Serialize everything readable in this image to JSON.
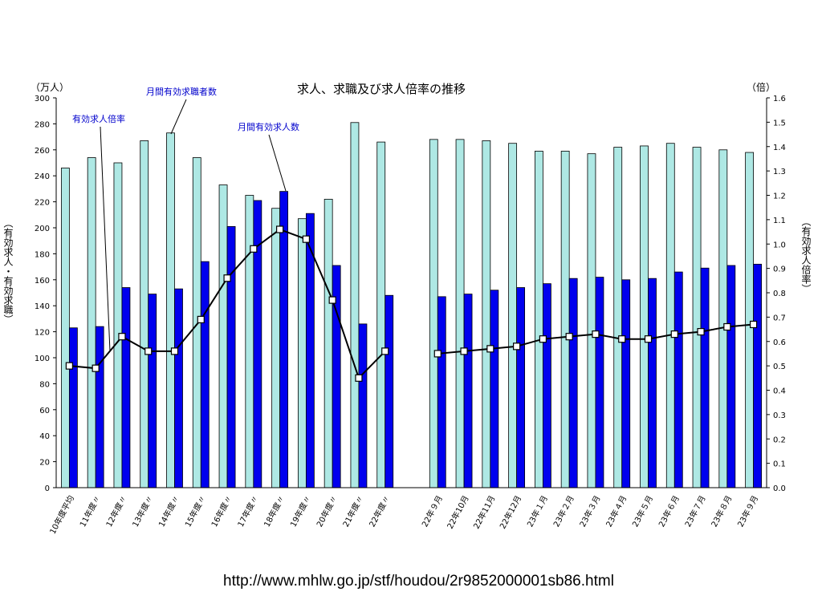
{
  "chart_data": {
    "type": "bar",
    "title": "求人、求職及び求人倍率の推移",
    "left_unit": "（万人）",
    "right_unit": "（倍）",
    "ylabel": "（有効求人・有効求職）",
    "y2label": "（有効求人倍率）",
    "ylim": [
      0,
      300
    ],
    "y2lim": [
      0,
      1.6
    ],
    "yticks": [
      "300",
      "280",
      "260",
      "240",
      "220",
      "200",
      "180",
      "160",
      "140",
      "120",
      "100",
      "80",
      "60",
      "40",
      "20",
      "0"
    ],
    "y2ticks": [
      "1.6",
      "1.5",
      "1.4",
      "1.3",
      "1.2",
      "1.1",
      "1.0",
      "0.9",
      "0.8",
      "0.7",
      "0.6",
      "0.5",
      "0.4",
      "0.3",
      "0.2",
      "0.1",
      "0.0"
    ],
    "categories": [
      "10年度平均",
      "11年度〃",
      "12年度〃",
      "13年度〃",
      "14年度〃",
      "15年度〃",
      "16年度〃",
      "17年度〃",
      "18年度〃",
      "19年度〃",
      "20年度〃",
      "21年度〃",
      "22年度〃",
      "",
      "22年９月",
      "22年10月",
      "22年11月",
      "22年12月",
      "23年１月",
      "23年２月",
      "23年３月",
      "23年４月",
      "23年５月",
      "23年６月",
      "23年７月",
      "23年８月",
      "23年９月"
    ],
    "series": [
      {
        "name": "月間有効求職者数",
        "type": "bar",
        "color": "#aee8e4",
        "values": [
          246,
          254,
          250,
          267,
          273,
          254,
          233,
          225,
          215,
          207,
          222,
          281,
          266,
          null,
          268,
          268,
          267,
          265,
          259,
          259,
          257,
          262,
          263,
          265,
          262,
          260,
          258
        ]
      },
      {
        "name": "月間有効求人数",
        "type": "bar",
        "color": "#0000ee",
        "values": [
          123,
          124,
          154,
          149,
          153,
          174,
          201,
          221,
          228,
          211,
          171,
          126,
          148,
          null,
          147,
          149,
          152,
          154,
          157,
          161,
          162,
          160,
          161,
          166,
          169,
          171,
          172
        ]
      },
      {
        "name": "有効求人倍率",
        "type": "line",
        "axis": "right",
        "color": "#000000",
        "values": [
          0.5,
          0.49,
          0.62,
          0.56,
          0.56,
          0.69,
          0.86,
          0.98,
          1.06,
          1.02,
          0.77,
          0.45,
          0.56,
          null,
          0.55,
          0.56,
          0.57,
          0.58,
          0.61,
          0.62,
          0.63,
          0.61,
          0.61,
          0.63,
          0.64,
          0.66,
          0.67
        ]
      }
    ]
  },
  "source": "http://www.mhlw.go.jp/stf/houdou/2r9852000001sb86.html"
}
